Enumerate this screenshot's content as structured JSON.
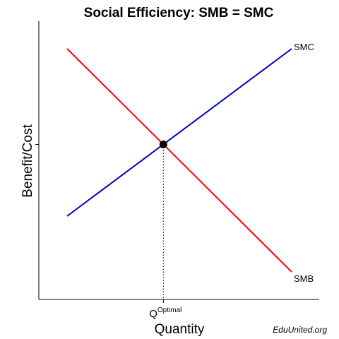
{
  "chart_data": {
    "type": "line",
    "title": "Social Efficiency: SMB = SMC",
    "xlabel": "Quantity",
    "ylabel": "Benefit/Cost",
    "xlim": [
      0,
      10
    ],
    "ylim": [
      0,
      10
    ],
    "grid": false,
    "series": [
      {
        "name": "SMC",
        "color": "#0000cc",
        "x": [
          1,
          9
        ],
        "y": [
          3,
          9
        ]
      },
      {
        "name": "SMB",
        "color": "#ff0000",
        "x": [
          1,
          9
        ],
        "y": [
          9,
          1
        ]
      }
    ],
    "equilibrium": {
      "x": 4.43,
      "y": 5.57
    },
    "x_tick": {
      "main": "Q",
      "sup": "Optimal"
    },
    "credit": "EduUnited.org"
  }
}
